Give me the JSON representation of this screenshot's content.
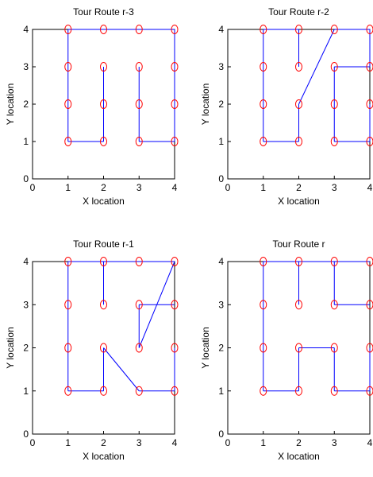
{
  "chart_data": [
    {
      "type": "line",
      "title": "Tour Route r-3",
      "xlabel": "X location",
      "ylabel": "Y location",
      "xlim": [
        0,
        4
      ],
      "ylim": [
        0,
        4
      ],
      "xticks": [
        "0",
        "1",
        "2",
        "3",
        "4"
      ],
      "yticks": [
        "0",
        "1",
        "2",
        "3",
        "4"
      ],
      "grid": false,
      "points": [
        [
          1,
          1
        ],
        [
          1,
          2
        ],
        [
          1,
          3
        ],
        [
          1,
          4
        ],
        [
          2,
          1
        ],
        [
          2,
          2
        ],
        [
          2,
          3
        ],
        [
          2,
          4
        ],
        [
          3,
          1
        ],
        [
          3,
          2
        ],
        [
          3,
          3
        ],
        [
          3,
          4
        ],
        [
          4,
          1
        ],
        [
          4,
          2
        ],
        [
          4,
          3
        ],
        [
          4,
          4
        ]
      ],
      "segments": [
        [
          [
            1,
            1
          ],
          [
            1,
            4
          ]
        ],
        [
          [
            1,
            4
          ],
          [
            4,
            4
          ]
        ],
        [
          [
            4,
            4
          ],
          [
            4,
            1
          ]
        ],
        [
          [
            4,
            1
          ],
          [
            3,
            1
          ]
        ],
        [
          [
            3,
            1
          ],
          [
            3,
            3
          ]
        ],
        [
          [
            2,
            3
          ],
          [
            2,
            1
          ]
        ],
        [
          [
            2,
            1
          ],
          [
            1,
            1
          ]
        ]
      ]
    },
    {
      "type": "line",
      "title": "Tour Route r-2",
      "xlabel": "X location",
      "ylabel": "Y location",
      "xlim": [
        0,
        4
      ],
      "ylim": [
        0,
        4
      ],
      "xticks": [
        "0",
        "1",
        "2",
        "3",
        "4"
      ],
      "yticks": [
        "0",
        "1",
        "2",
        "3",
        "4"
      ],
      "grid": false,
      "points": [
        [
          1,
          1
        ],
        [
          1,
          2
        ],
        [
          1,
          3
        ],
        [
          1,
          4
        ],
        [
          2,
          1
        ],
        [
          2,
          2
        ],
        [
          2,
          3
        ],
        [
          2,
          4
        ],
        [
          3,
          1
        ],
        [
          3,
          2
        ],
        [
          3,
          3
        ],
        [
          3,
          4
        ],
        [
          4,
          1
        ],
        [
          4,
          2
        ],
        [
          4,
          3
        ],
        [
          4,
          4
        ]
      ],
      "segments": [
        [
          [
            1,
            1
          ],
          [
            1,
            4
          ]
        ],
        [
          [
            1,
            4
          ],
          [
            2,
            4
          ]
        ],
        [
          [
            2,
            4
          ],
          [
            2,
            3
          ]
        ],
        [
          [
            3,
            4
          ],
          [
            2,
            2
          ]
        ],
        [
          [
            2,
            2
          ],
          [
            2,
            1
          ]
        ],
        [
          [
            2,
            1
          ],
          [
            1,
            1
          ]
        ],
        [
          [
            3,
            4
          ],
          [
            4,
            4
          ]
        ],
        [
          [
            4,
            4
          ],
          [
            4,
            3
          ]
        ],
        [
          [
            4,
            3
          ],
          [
            3,
            3
          ]
        ],
        [
          [
            3,
            3
          ],
          [
            3,
            1
          ]
        ],
        [
          [
            3,
            1
          ],
          [
            4,
            1
          ]
        ],
        [
          [
            4,
            1
          ],
          [
            4,
            2
          ]
        ]
      ]
    },
    {
      "type": "line",
      "title": "Tour Route r-1",
      "xlabel": "X location",
      "ylabel": "Y location",
      "xlim": [
        0,
        4
      ],
      "ylim": [
        0,
        4
      ],
      "xticks": [
        "0",
        "1",
        "2",
        "3",
        "4"
      ],
      "yticks": [
        "0",
        "1",
        "2",
        "3",
        "4"
      ],
      "grid": false,
      "points": [
        [
          1,
          1
        ],
        [
          1,
          2
        ],
        [
          1,
          3
        ],
        [
          1,
          4
        ],
        [
          2,
          1
        ],
        [
          2,
          2
        ],
        [
          2,
          3
        ],
        [
          2,
          4
        ],
        [
          3,
          1
        ],
        [
          3,
          2
        ],
        [
          3,
          3
        ],
        [
          3,
          4
        ],
        [
          4,
          1
        ],
        [
          4,
          2
        ],
        [
          4,
          3
        ],
        [
          4,
          4
        ]
      ],
      "segments": [
        [
          [
            1,
            1
          ],
          [
            1,
            4
          ]
        ],
        [
          [
            1,
            4
          ],
          [
            4,
            4
          ]
        ],
        [
          [
            2,
            4
          ],
          [
            2,
            3
          ]
        ],
        [
          [
            4,
            4
          ],
          [
            3,
            2
          ]
        ],
        [
          [
            3,
            2
          ],
          [
            3,
            3
          ]
        ],
        [
          [
            3,
            3
          ],
          [
            4,
            3
          ]
        ],
        [
          [
            2,
            2
          ],
          [
            3,
            1
          ]
        ],
        [
          [
            2,
            2
          ],
          [
            2,
            1
          ]
        ],
        [
          [
            2,
            1
          ],
          [
            1,
            1
          ]
        ],
        [
          [
            3,
            1
          ],
          [
            4,
            1
          ]
        ],
        [
          [
            4,
            1
          ],
          [
            4,
            2
          ]
        ]
      ]
    },
    {
      "type": "line",
      "title": "Tour Route r",
      "xlabel": "X location",
      "ylabel": "Y location",
      "xlim": [
        0,
        4
      ],
      "ylim": [
        0,
        4
      ],
      "xticks": [
        "0",
        "1",
        "2",
        "3",
        "4"
      ],
      "yticks": [
        "0",
        "1",
        "2",
        "3",
        "4"
      ],
      "grid": false,
      "points": [
        [
          1,
          1
        ],
        [
          1,
          2
        ],
        [
          1,
          3
        ],
        [
          1,
          4
        ],
        [
          2,
          1
        ],
        [
          2,
          2
        ],
        [
          2,
          3
        ],
        [
          2,
          4
        ],
        [
          3,
          1
        ],
        [
          3,
          2
        ],
        [
          3,
          3
        ],
        [
          3,
          4
        ],
        [
          4,
          1
        ],
        [
          4,
          2
        ],
        [
          4,
          3
        ],
        [
          4,
          4
        ]
      ],
      "segments": [
        [
          [
            1,
            1
          ],
          [
            1,
            4
          ]
        ],
        [
          [
            1,
            4
          ],
          [
            4,
            4
          ]
        ],
        [
          [
            2,
            4
          ],
          [
            2,
            3
          ]
        ],
        [
          [
            3,
            4
          ],
          [
            3,
            3
          ]
        ],
        [
          [
            3,
            3
          ],
          [
            4,
            3
          ]
        ],
        [
          [
            2,
            1
          ],
          [
            1,
            1
          ]
        ],
        [
          [
            2,
            1
          ],
          [
            2,
            2
          ]
        ],
        [
          [
            2,
            2
          ],
          [
            3,
            2
          ]
        ],
        [
          [
            3,
            2
          ],
          [
            3,
            1
          ]
        ],
        [
          [
            3,
            1
          ],
          [
            4,
            1
          ]
        ],
        [
          [
            4,
            1
          ],
          [
            4,
            2
          ]
        ]
      ]
    }
  ],
  "colors": {
    "route": "#0000ff",
    "marker": "#ff0000",
    "axes": "#000000"
  }
}
